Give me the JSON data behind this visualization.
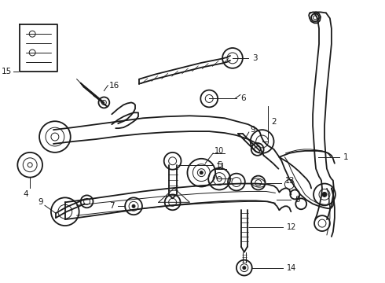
{
  "bg_color": "#ffffff",
  "line_color": "#1a1a1a",
  "lw_main": 1.3,
  "lw_thin": 0.7,
  "fontsize": 7.5,
  "figsize": [
    4.9,
    3.6
  ],
  "dpi": 100
}
